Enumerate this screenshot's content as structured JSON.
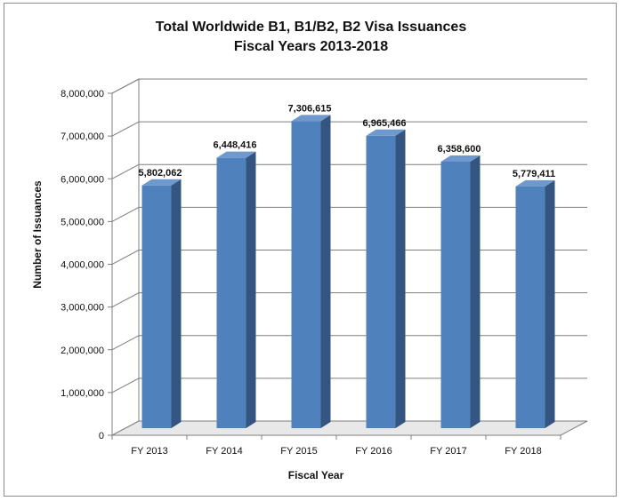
{
  "chart_data": {
    "type": "bar",
    "title": "Total Worldwide B1, B1/B2, B2 Visa Issuances",
    "subtitle": "Fiscal Years 2013-2018",
    "xlabel": "Fiscal Year",
    "ylabel": "Number of Issuances",
    "categories": [
      "FY 2013",
      "FY 2014",
      "FY 2015",
      "FY 2016",
      "FY 2017",
      "FY 2018"
    ],
    "values": [
      5802062,
      6448416,
      7306615,
      6965466,
      6358600,
      5779411
    ],
    "data_labels": [
      "5,802,062",
      "6,448,416",
      "7,306,615",
      "6,965,466",
      "6,358,600",
      "5,779,411"
    ],
    "ylim": [
      0,
      8000000
    ],
    "yticks": [
      0,
      1000000,
      2000000,
      3000000,
      4000000,
      5000000,
      6000000,
      7000000,
      8000000
    ],
    "ytick_labels": [
      "0",
      "1,000,000",
      "2,000,000",
      "3,000,000",
      "4,000,000",
      "5,000,000",
      "6,000,000",
      "7,000,000",
      "8,000,000"
    ],
    "grid": true,
    "legend": "none",
    "bar_color": "#4f81bd"
  }
}
